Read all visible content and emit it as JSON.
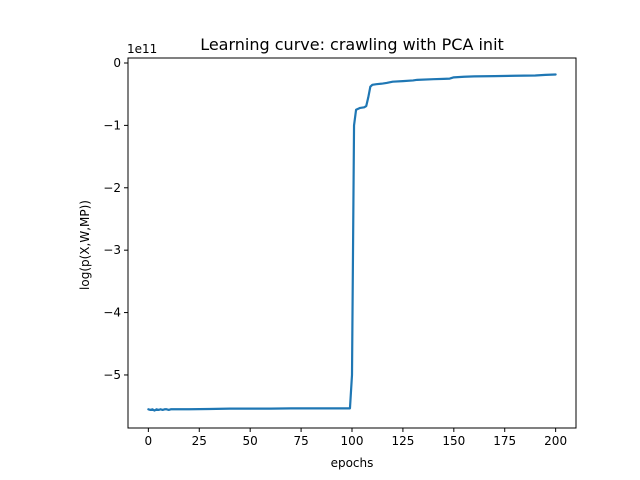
{
  "chart_data": {
    "type": "line",
    "title": "Learning curve: crawling with PCA init",
    "xlabel": "epochs",
    "ylabel": "log(p(X,W,MP))",
    "y_offset_label": "1e11",
    "xlim": [
      -10,
      210
    ],
    "ylim": [
      -5.85,
      0.08
    ],
    "x_ticks": [
      0,
      25,
      50,
      75,
      100,
      125,
      150,
      175,
      200
    ],
    "x_tick_labels": [
      "0",
      "25",
      "50",
      "75",
      "100",
      "125",
      "150",
      "175",
      "200"
    ],
    "y_ticks": [
      0,
      -1,
      -2,
      -3,
      -4,
      -5
    ],
    "y_tick_labels": [
      "0",
      "−1",
      "−2",
      "−3",
      "−4",
      "−5"
    ],
    "grid": false,
    "colors": {
      "line": "#1f77b4"
    },
    "series": [
      {
        "x": [
          0,
          1,
          2,
          3,
          4,
          5,
          6,
          7,
          8,
          9,
          10,
          11,
          12,
          15,
          20,
          30,
          40,
          50,
          60,
          70,
          80,
          90,
          99,
          100,
          101,
          102,
          104,
          106,
          107,
          108,
          109,
          110,
          112,
          115,
          117,
          120,
          125,
          130,
          132,
          140,
          145,
          148,
          150,
          155,
          160,
          170,
          180,
          190,
          195,
          200
        ],
        "y": [
          -5.55,
          -5.56,
          -5.55,
          -5.57,
          -5.55,
          -5.56,
          -5.55,
          -5.56,
          -5.55,
          -5.55,
          -5.56,
          -5.55,
          -5.55,
          -5.55,
          -5.55,
          -5.545,
          -5.54,
          -5.54,
          -5.54,
          -5.535,
          -5.535,
          -5.535,
          -5.535,
          -5.0,
          -1.0,
          -0.75,
          -0.72,
          -0.71,
          -0.69,
          -0.55,
          -0.38,
          -0.35,
          -0.34,
          -0.33,
          -0.32,
          -0.3,
          -0.29,
          -0.28,
          -0.27,
          -0.26,
          -0.255,
          -0.25,
          -0.23,
          -0.22,
          -0.215,
          -0.21,
          -0.205,
          -0.2,
          -0.19,
          -0.185
        ]
      }
    ]
  }
}
